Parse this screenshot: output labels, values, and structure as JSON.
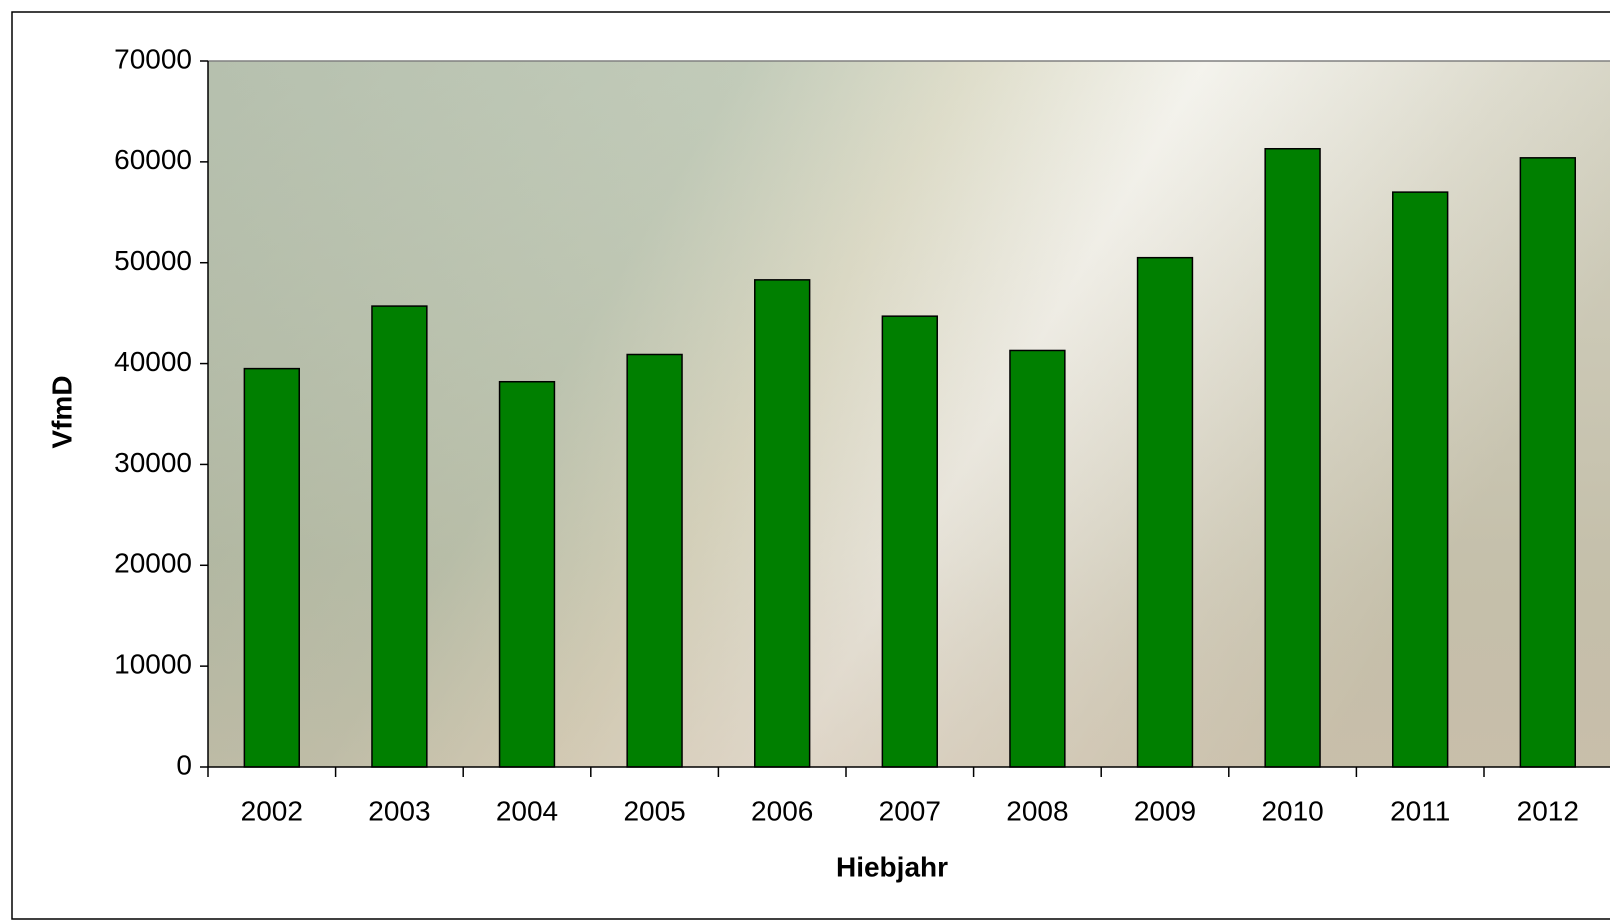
{
  "chart_data": {
    "type": "bar",
    "categories": [
      "2002",
      "2003",
      "2004",
      "2005",
      "2006",
      "2007",
      "2008",
      "2009",
      "2010",
      "2011",
      "2012"
    ],
    "values": [
      39500,
      45700,
      38200,
      40900,
      48300,
      44700,
      41300,
      50500,
      61300,
      57000,
      60400
    ],
    "color": "#007f00",
    "x_label": "Hiebjahr",
    "y_label": "VfmD",
    "ylim": [
      0,
      70000
    ],
    "yticks": [
      0,
      10000,
      20000,
      30000,
      40000,
      50000,
      60000,
      70000
    ],
    "grid": false
  }
}
